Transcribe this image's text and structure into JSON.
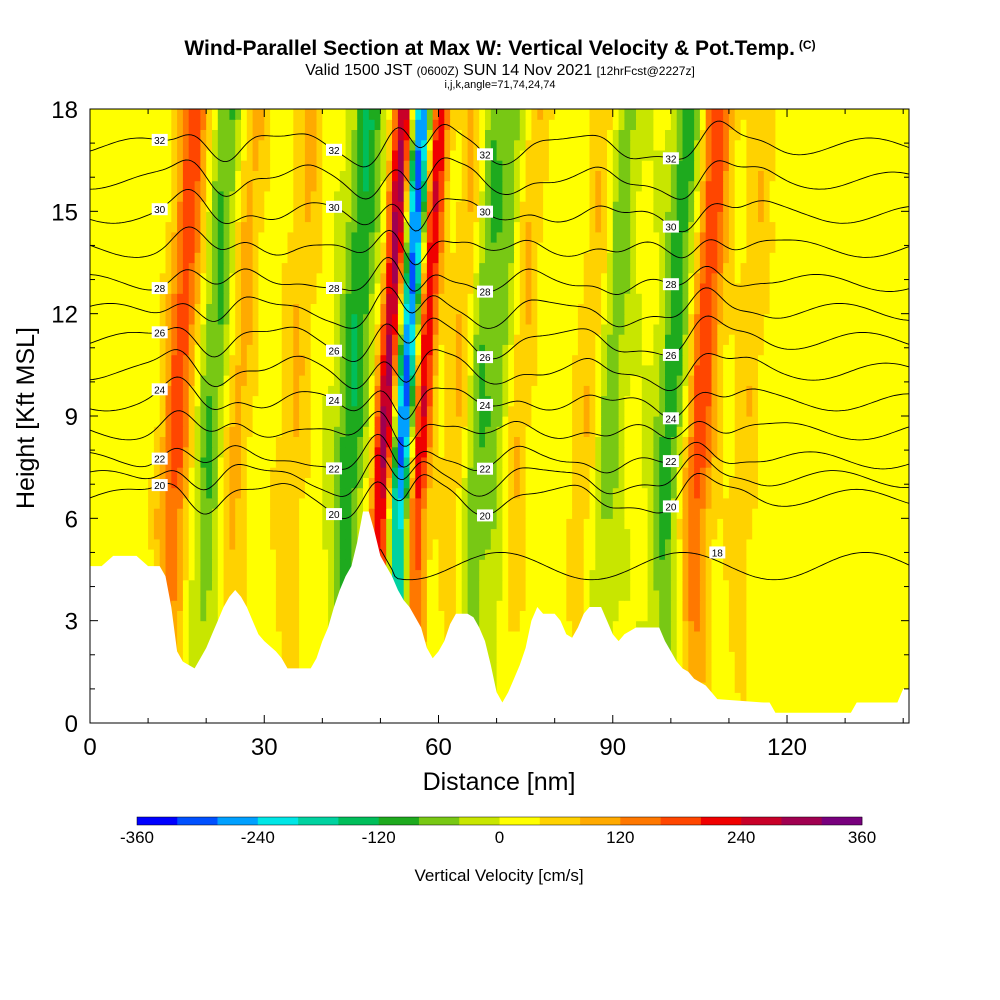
{
  "title": {
    "main": "Wind-Parallel Section at Max W: Vertical Velocity & Pot.Temp.",
    "copyright": "(C)",
    "valid_prefix": "Valid 1500 JST",
    "valid_utc": "(0600Z)",
    "valid_date": "SUN 14 Nov 2021",
    "forecast": "[12hrFcst@2227z]",
    "indices": "i,j,k,angle=71,74,24,74"
  },
  "chart_data": {
    "type": "heatmap",
    "xlabel": "Distance [nm]",
    "ylabel": "Height [Kft MSL]",
    "xlim": [
      0,
      141
    ],
    "ylim": [
      0,
      18
    ],
    "x_ticks": [
      0,
      30,
      60,
      90,
      120
    ],
    "y_ticks": [
      0,
      3,
      6,
      9,
      12,
      15,
      18
    ],
    "terrain_kft": [
      [
        0,
        4.6
      ],
      [
        2,
        4.6
      ],
      [
        4,
        4.9
      ],
      [
        6,
        4.9
      ],
      [
        8,
        4.9
      ],
      [
        10,
        4.6
      ],
      [
        12,
        4.6
      ],
      [
        13,
        4.3
      ],
      [
        14,
        3.4
      ],
      [
        15,
        2.1
      ],
      [
        16,
        1.8
      ],
      [
        18,
        1.6
      ],
      [
        19,
        1.9
      ],
      [
        20,
        2.2
      ],
      [
        21,
        2.6
      ],
      [
        22,
        3.0
      ],
      [
        23,
        3.4
      ],
      [
        24,
        3.7
      ],
      [
        25,
        3.9
      ],
      [
        26,
        3.7
      ],
      [
        27,
        3.4
      ],
      [
        28,
        3.0
      ],
      [
        29,
        2.6
      ],
      [
        30,
        2.4
      ],
      [
        32,
        2.1
      ],
      [
        33,
        1.9
      ],
      [
        34,
        1.6
      ],
      [
        38,
        1.6
      ],
      [
        39,
        1.9
      ],
      [
        40,
        2.4
      ],
      [
        41,
        2.8
      ],
      [
        42,
        3.4
      ],
      [
        43,
        3.9
      ],
      [
        44,
        4.3
      ],
      [
        45,
        4.6
      ],
      [
        46,
        5.3
      ],
      [
        47,
        6.2
      ],
      [
        48,
        6.2
      ],
      [
        49,
        5.6
      ],
      [
        50,
        4.9
      ],
      [
        51,
        4.6
      ],
      [
        52,
        4.3
      ],
      [
        53,
        3.9
      ],
      [
        54,
        3.6
      ],
      [
        55,
        3.4
      ],
      [
        56,
        3.1
      ],
      [
        57,
        2.8
      ],
      [
        58,
        2.2
      ],
      [
        59,
        1.9
      ],
      [
        60,
        2.1
      ],
      [
        61,
        2.4
      ],
      [
        62,
        2.9
      ],
      [
        63,
        3.2
      ],
      [
        65,
        3.2
      ],
      [
        66,
        3.1
      ],
      [
        67,
        2.8
      ],
      [
        68,
        2.4
      ],
      [
        69,
        1.7
      ],
      [
        70,
        0.9
      ],
      [
        71,
        0.6
      ],
      [
        72,
        0.9
      ],
      [
        73,
        1.3
      ],
      [
        74,
        1.7
      ],
      [
        75,
        2.2
      ],
      [
        76,
        3.0
      ],
      [
        77,
        3.4
      ],
      [
        78,
        3.2
      ],
      [
        80,
        3.2
      ],
      [
        81,
        3.0
      ],
      [
        82,
        2.6
      ],
      [
        83,
        2.5
      ],
      [
        84,
        2.8
      ],
      [
        85,
        3.2
      ],
      [
        86,
        3.4
      ],
      [
        88,
        3.4
      ],
      [
        89,
        3.0
      ],
      [
        90,
        2.6
      ],
      [
        91,
        2.4
      ],
      [
        92,
        2.6
      ],
      [
        94,
        2.8
      ],
      [
        98,
        2.8
      ],
      [
        99,
        2.4
      ],
      [
        100,
        2.1
      ],
      [
        101,
        1.8
      ],
      [
        102,
        1.6
      ],
      [
        103,
        1.5
      ],
      [
        104,
        1.3
      ],
      [
        106,
        1.1
      ],
      [
        107,
        0.9
      ],
      [
        108,
        0.7
      ],
      [
        116,
        0.6
      ],
      [
        117,
        0.6
      ],
      [
        118,
        0.3
      ],
      [
        124,
        0.3
      ],
      [
        126,
        0.3
      ],
      [
        131,
        0.3
      ],
      [
        132,
        0.6
      ],
      [
        139,
        0.6
      ],
      [
        140,
        1.0
      ],
      [
        141,
        1.0
      ]
    ],
    "updraft_bands": [
      {
        "x": 14,
        "w_cms": 170
      },
      {
        "x": 24,
        "w_cms": 90
      },
      {
        "x": 34,
        "w_cms": 70
      },
      {
        "x": 50,
        "w_cms": 300
      },
      {
        "x": 56,
        "w_cms": 240
      },
      {
        "x": 63,
        "w_cms": 120
      },
      {
        "x": 72,
        "w_cms": 110
      },
      {
        "x": 85,
        "w_cms": 80
      },
      {
        "x": 104,
        "w_cms": 180
      },
      {
        "x": 112,
        "w_cms": 60
      }
    ],
    "downdraft_bands": [
      {
        "x": 20,
        "w_cms": -110
      },
      {
        "x": 44,
        "w_cms": -130
      },
      {
        "x": 53,
        "w_cms": -340
      },
      {
        "x": 65,
        "w_cms": -130
      },
      {
        "x": 70,
        "w_cms": -100
      },
      {
        "x": 88,
        "w_cms": -90
      },
      {
        "x": 99,
        "w_cms": -120
      }
    ],
    "theta_contours": [
      {
        "label": "20",
        "base_kft": 6.6
      },
      {
        "label": "22",
        "base_kft": 7.7
      },
      {
        "label": "24",
        "base_kft": 9.4
      },
      {
        "label": "26",
        "base_kft": 11.2
      },
      {
        "label": "28",
        "base_kft": 12.9
      },
      {
        "label": "30",
        "base_kft": 14.9
      },
      {
        "label": "32",
        "base_kft": 16.9
      }
    ],
    "extra_contour_label": "18",
    "colorbar": {
      "label": "Vertical Velocity [cm/s]",
      "min": -360,
      "max": 360,
      "step": 40,
      "tick_labels": [
        "-360",
        "-240",
        "-120",
        "0",
        "120",
        "240",
        "360"
      ],
      "colors": [
        "#0000ff",
        "#0050ff",
        "#00a0ff",
        "#00e6e6",
        "#00d2a0",
        "#00be5a",
        "#1eaa1e",
        "#78c814",
        "#c8e600",
        "#ffff00",
        "#ffd200",
        "#ffaa00",
        "#ff7800",
        "#ff4600",
        "#f00000",
        "#c80028",
        "#a00050",
        "#78007d"
      ]
    }
  }
}
